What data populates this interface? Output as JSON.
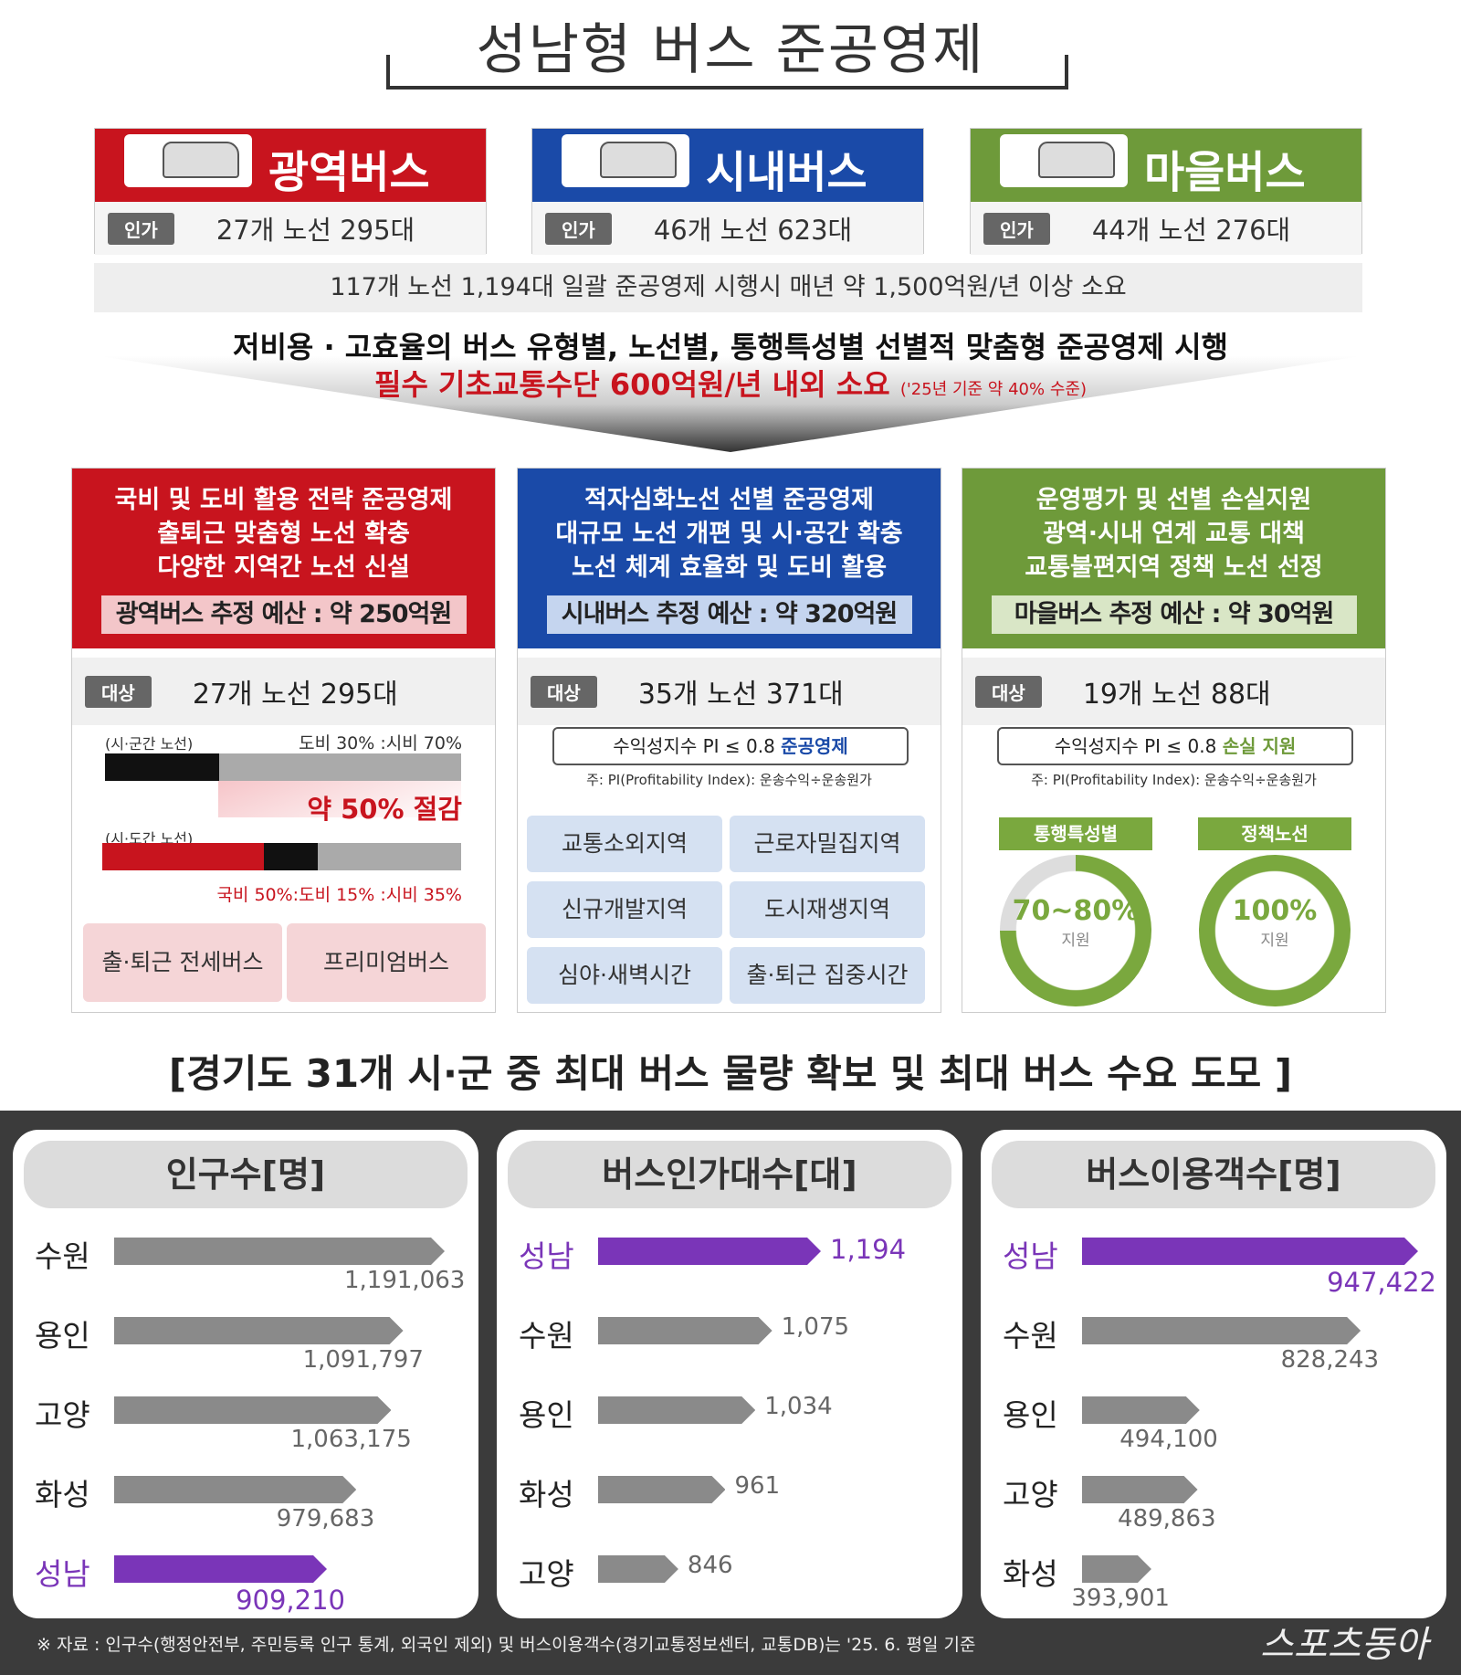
{
  "title": "성남형 버스 준공영제",
  "bus_types": [
    {
      "name": "광역버스",
      "badge": "인가",
      "value": "27개 노선 295대",
      "color": "#c8141e"
    },
    {
      "name": "시내버스",
      "badge": "인가",
      "value": "46개 노선 623대",
      "color": "#1a4aa8"
    },
    {
      "name": "마을버스",
      "badge": "인가",
      "value": "44개 노선 276대",
      "color": "#6e9a3a"
    }
  ],
  "summary": "117개 노선 1,194대 일괄 준공영제 시행시 매년 약 1,500억원/년 이상 소요",
  "arrow": {
    "line1": "저비용 · 고효율의 버스 유형별, 노선별, 통행특성별 선별적 맞춤형 준공영제 시행",
    "line2": "필수 기초교통수단 600억원/년 내외 소요",
    "line2_note": "('25년 기준 약 40% 수준)"
  },
  "panels": [
    {
      "lines": [
        "국비 및 도비 활용 전략 준공영제",
        "출퇴근 맞춤형 노선 확충",
        "다양한 지역간 노선 신설"
      ],
      "budget": "광역버스 추정 예산 : 약 250억원",
      "badge": "대상",
      "target": "27개 노선 295대",
      "route1_label": "(시·군간 노선)",
      "route1_split": "도비 30% :시비 70%",
      "route1_shares": [
        30,
        70
      ],
      "saving": "약 50% 절감",
      "route2_label": "(시·도간 노선)",
      "route2_split": "국비 50%:도비 15% :시비 35%",
      "route2_shares": [
        50,
        15,
        35
      ],
      "chips": [
        "출·퇴근 전세버스",
        "프리미엄버스"
      ]
    },
    {
      "lines": [
        "적자심화노선 선별 준공영제",
        "대규모 노선 개편 및 시·공간 확충",
        "노선 체계 효율화 및 도비 활용"
      ],
      "budget": "시내버스 추정 예산 : 약 320억원",
      "badge": "대상",
      "target": "35개 노선 371대",
      "pi": "수익성지수 PI ≤ 0.8 ",
      "pi_em": "준공영제",
      "note": "주: PI(Profitability Index): 운송수익÷운송원가",
      "chips": [
        "교통소외지역",
        "근로자밀집지역",
        "신규개발지역",
        "도시재생지역",
        "심야·새벽시간",
        "출·퇴근 집중시간"
      ]
    },
    {
      "lines": [
        "운영평가 및 선별 손실지원",
        "광역·시내 연계 교통 대책",
        "교통불편지역 정책 노선 선정"
      ],
      "budget": "마을버스 추정 예산 : 약 30억원",
      "badge": "대상",
      "target": "19개 노선 88대",
      "pi": "수익성지수 PI ≤ 0.8 ",
      "pi_em": "손실 지원",
      "note": "주: PI(Profitability Index): 운송수익÷운송원가",
      "rings": [
        {
          "label": "통행특성별",
          "pct": "70~80%",
          "fill": 75,
          "sub": "지원"
        },
        {
          "label": "정책노선",
          "pct": "100%",
          "fill": 100,
          "sub": "지원"
        }
      ]
    }
  ],
  "heading": "[경기도 31개 시·군 중 최대 버스 물량 확보 및 최대 버스 수요 도모 ]",
  "chart_data": [
    {
      "type": "bar",
      "title": "인구수[명]",
      "categories": [
        "수원",
        "용인",
        "고양",
        "화성",
        "성남"
      ],
      "values": [
        1191063,
        1091797,
        1063175,
        979683,
        909210
      ],
      "labels": [
        "1,191,063",
        "1,091,797",
        "1,063,175",
        "979,683",
        "909,210"
      ],
      "highlight": "성남"
    },
    {
      "type": "bar",
      "title": "버스인가대수[대]",
      "categories": [
        "성남",
        "수원",
        "용인",
        "화성",
        "고양"
      ],
      "values": [
        1194,
        1075,
        1034,
        961,
        846
      ],
      "labels": [
        "1,194",
        "1,075",
        "1,034",
        "961",
        "846"
      ],
      "highlight": "성남"
    },
    {
      "type": "bar",
      "title": "버스이용객수[명]",
      "categories": [
        "성남",
        "수원",
        "용인",
        "고양",
        "화성"
      ],
      "values": [
        947422,
        828243,
        494100,
        489863,
        393901
      ],
      "labels": [
        "947,422",
        "828,243",
        "494,100",
        "489,863",
        "393,901"
      ],
      "highlight": "성남"
    }
  ],
  "colors": {
    "highlight": "#7a35b8",
    "bar": "#8a8a8a"
  },
  "footnote": "※ 자료 : 인구수(행정안전부, 주민등록 인구 통계, 외국인 제외) 및 버스이용객수(경기교통정보센터, 교통DB)는 '25. 6. 평일 기준",
  "logo": "스포츠동아"
}
